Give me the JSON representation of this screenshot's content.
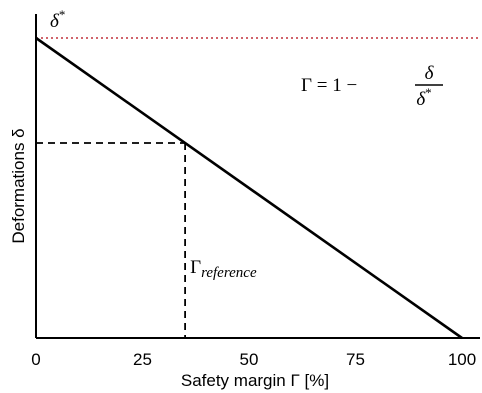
{
  "chart_data": {
    "type": "line",
    "xlabel": "Safety margin  Γ [%]",
    "ylabel": "Deformations δ",
    "xlim": [
      0,
      100
    ],
    "x_ticks": [
      "0",
      "25",
      "50",
      "75",
      "100"
    ],
    "x_tick_values": [
      0,
      25,
      50,
      75,
      100
    ],
    "y_ticks": [],
    "grid": false,
    "series": [
      {
        "x": [
          0,
          100
        ],
        "y": [
          1,
          0
        ],
        "color": "#000000",
        "style": "solid"
      }
    ],
    "threshold": {
      "value": 1,
      "label_symbol": "δ",
      "label_superscript": "*",
      "color": "#c0303a",
      "style": "dotted"
    },
    "reference": {
      "x": 35,
      "label_symbol": "Γ",
      "label_subscript": "reference",
      "style": "dashed",
      "color": "#000000"
    },
    "formula": {
      "lhs": "Γ = 1 −",
      "numerator": "δ",
      "denominator": "δ",
      "denominator_superscript": "*"
    }
  }
}
